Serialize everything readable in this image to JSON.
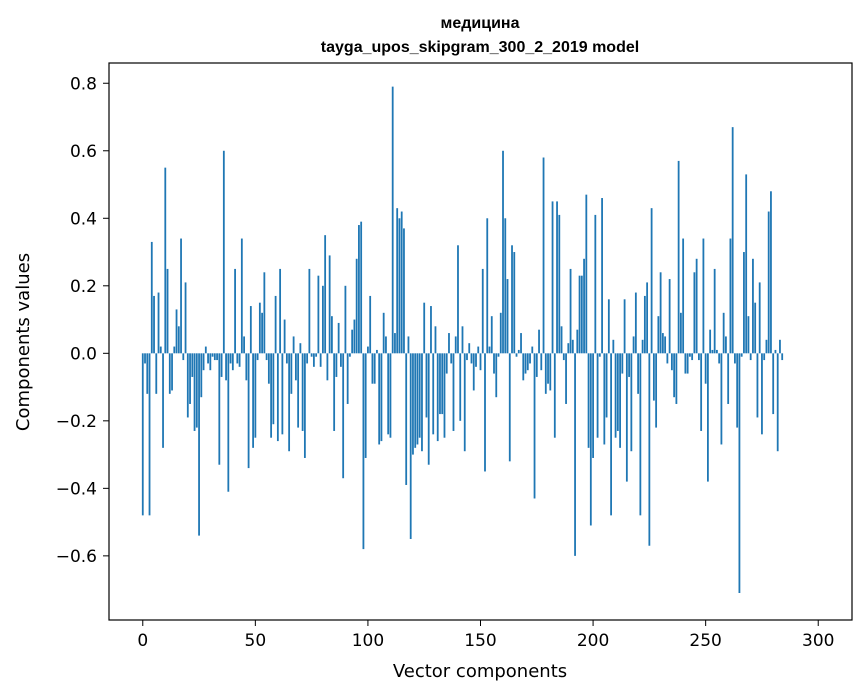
{
  "chart_data": {
    "type": "bar",
    "title": "медицина",
    "subtitle": "tayga_upos_skipgram_300_2_2019 model",
    "xlabel": "Vector components",
    "ylabel": "Components values",
    "xlim": [
      -15,
      315
    ],
    "ylim": [
      -0.79,
      0.86
    ],
    "xticks": [
      0,
      50,
      100,
      150,
      200,
      250,
      300
    ],
    "yticks": [
      -0.6,
      -0.4,
      -0.2,
      0.0,
      0.2,
      0.4,
      0.6,
      0.8
    ],
    "xtick_labels": [
      "0",
      "50",
      "100",
      "150",
      "200",
      "250",
      "300"
    ],
    "ytick_labels": [
      "−0.6",
      "−0.4",
      "−0.2",
      "0.0",
      "0.2",
      "0.4",
      "0.6",
      "0.8"
    ],
    "bar_color": "#1f77b4",
    "grid": false,
    "series": [
      {
        "values": [
          -0.48,
          -0.03,
          -0.12,
          -0.48,
          0.33,
          0.17,
          -0.12,
          0.18,
          0.02,
          -0.28,
          0.55,
          0.25,
          -0.12,
          -0.11,
          0.02,
          0.13,
          0.08,
          0.34,
          -0.02,
          0.21,
          -0.19,
          -0.15,
          -0.07,
          -0.23,
          -0.22,
          -0.54,
          -0.13,
          -0.05,
          0.02,
          -0.03,
          -0.05,
          -0.01,
          -0.02,
          -0.02,
          -0.33,
          -0.07,
          0.6,
          -0.08,
          -0.41,
          -0.03,
          -0.05,
          0.25,
          -0.03,
          -0.04,
          0.34,
          0.05,
          -0.08,
          -0.34,
          0.14,
          -0.28,
          -0.25,
          -0.02,
          0.15,
          0.12,
          0.24,
          -0.02,
          -0.09,
          -0.25,
          -0.21,
          0.17,
          -0.26,
          0.25,
          -0.24,
          0.1,
          -0.03,
          -0.29,
          -0.12,
          0.05,
          -0.08,
          -0.22,
          0.03,
          -0.23,
          -0.31,
          -0.03,
          0.25,
          -0.01,
          -0.04,
          -0.01,
          0.23,
          -0.04,
          0.2,
          0.35,
          -0.08,
          0.29,
          0.11,
          -0.23,
          -0.07,
          0.09,
          -0.04,
          -0.37,
          0.2,
          -0.15,
          -0.01,
          0.07,
          0.1,
          0.28,
          0.38,
          0.39,
          -0.58,
          -0.31,
          0.02,
          0.17,
          -0.09,
          -0.09,
          0.01,
          -0.27,
          -0.26,
          0.12,
          0.05,
          -0.24,
          -0.25,
          0.79,
          0.06,
          0.43,
          0.4,
          0.42,
          0.37,
          -0.39,
          0.05,
          -0.55,
          -0.3,
          -0.28,
          -0.27,
          -0.25,
          -0.29,
          0.15,
          -0.19,
          -0.33,
          0.14,
          -0.24,
          0.08,
          -0.26,
          -0.18,
          -0.18,
          -0.25,
          -0.06,
          0.06,
          -0.03,
          -0.23,
          0.05,
          0.32,
          -0.2,
          0.08,
          -0.29,
          -0.02,
          0.03,
          -0.03,
          -0.11,
          -0.04,
          0.02,
          -0.05,
          0.25,
          -0.35,
          0.4,
          0.02,
          0.11,
          -0.06,
          -0.13,
          -0.01,
          0.12,
          0.6,
          0.4,
          0.22,
          -0.32,
          0.32,
          0.3,
          -0.01,
          0.01,
          0.06,
          -0.08,
          -0.06,
          -0.05,
          -0.03,
          0.02,
          -0.43,
          -0.07,
          0.07,
          -0.05,
          0.58,
          -0.12,
          -0.09,
          -0.11,
          0.45,
          -0.25,
          0.45,
          0.41,
          0.08,
          -0.02,
          -0.15,
          0.03,
          0.25,
          0.04,
          -0.6,
          0.07,
          0.23,
          0.23,
          0.28,
          0.47,
          -0.28,
          -0.51,
          -0.31,
          0.41,
          -0.25,
          -0.01,
          0.46,
          -0.27,
          -0.19,
          0.16,
          -0.48,
          0.04,
          -0.25,
          -0.23,
          -0.28,
          -0.06,
          0.16,
          -0.38,
          -0.07,
          -0.29,
          0.05,
          0.18,
          -0.12,
          -0.48,
          0.04,
          0.17,
          0.21,
          -0.57,
          0.43,
          -0.14,
          -0.22,
          0.11,
          0.24,
          0.06,
          0.05,
          -0.03,
          0.22,
          -0.05,
          -0.13,
          -0.15,
          0.57,
          0.12,
          0.34,
          -0.06,
          -0.06,
          -0.01,
          -0.02,
          0.24,
          0.28,
          -0.02,
          -0.23,
          0.34,
          -0.09,
          -0.38,
          0.07,
          0.01,
          0.25,
          0.01,
          -0.03,
          -0.27,
          0.12,
          0.05,
          -0.15,
          0.34,
          0.67,
          -0.03,
          -0.22,
          -0.71,
          -0.01,
          0.3,
          0.53,
          0.11,
          -0.02,
          0.28,
          0.15,
          -0.19,
          0.21,
          -0.24,
          -0.02,
          0.04,
          0.42,
          0.48,
          -0.18,
          0.01,
          -0.29,
          0.04,
          -0.02
        ]
      }
    ]
  }
}
